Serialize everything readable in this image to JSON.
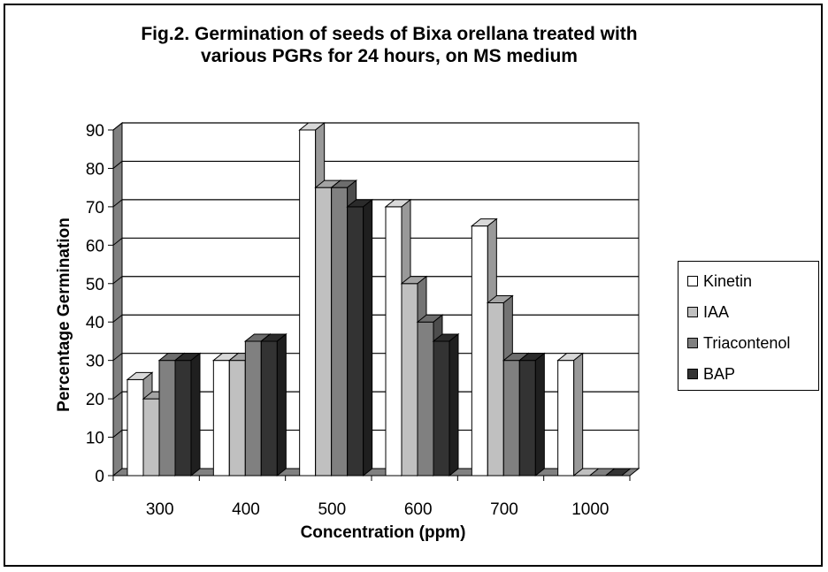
{
  "title_line1": "Fig.2. Germination of seeds of Bixa orellana treated with",
  "title_line2": "various PGRs for 24 hours, on MS medium",
  "chart_data": {
    "type": "bar",
    "style": "3d-clustered",
    "title": "Fig.2. Germination of seeds of Bixa orellana treated with various PGRs for 24 hours, on MS medium",
    "xlabel": "Concentration (ppm)",
    "ylabel": "Percentage Germination",
    "ylim": [
      0,
      90
    ],
    "yticks": [
      0,
      10,
      20,
      30,
      40,
      50,
      60,
      70,
      80,
      90
    ],
    "categories": [
      "300",
      "400",
      "500",
      "600",
      "700",
      "1000"
    ],
    "series": [
      {
        "name": "Kinetin",
        "color": "#ffffff",
        "values": [
          25,
          30,
          90,
          70,
          65,
          30
        ]
      },
      {
        "name": "IAA",
        "color": "#c0c0c0",
        "values": [
          20,
          30,
          75,
          50,
          45,
          0
        ]
      },
      {
        "name": "Triacontenol",
        "color": "#808080",
        "values": [
          30,
          35,
          75,
          40,
          30,
          0
        ]
      },
      {
        "name": "BAP",
        "color": "#333333",
        "values": [
          30,
          35,
          70,
          35,
          30,
          0
        ]
      }
    ],
    "grid": true,
    "legend_position": "right"
  }
}
